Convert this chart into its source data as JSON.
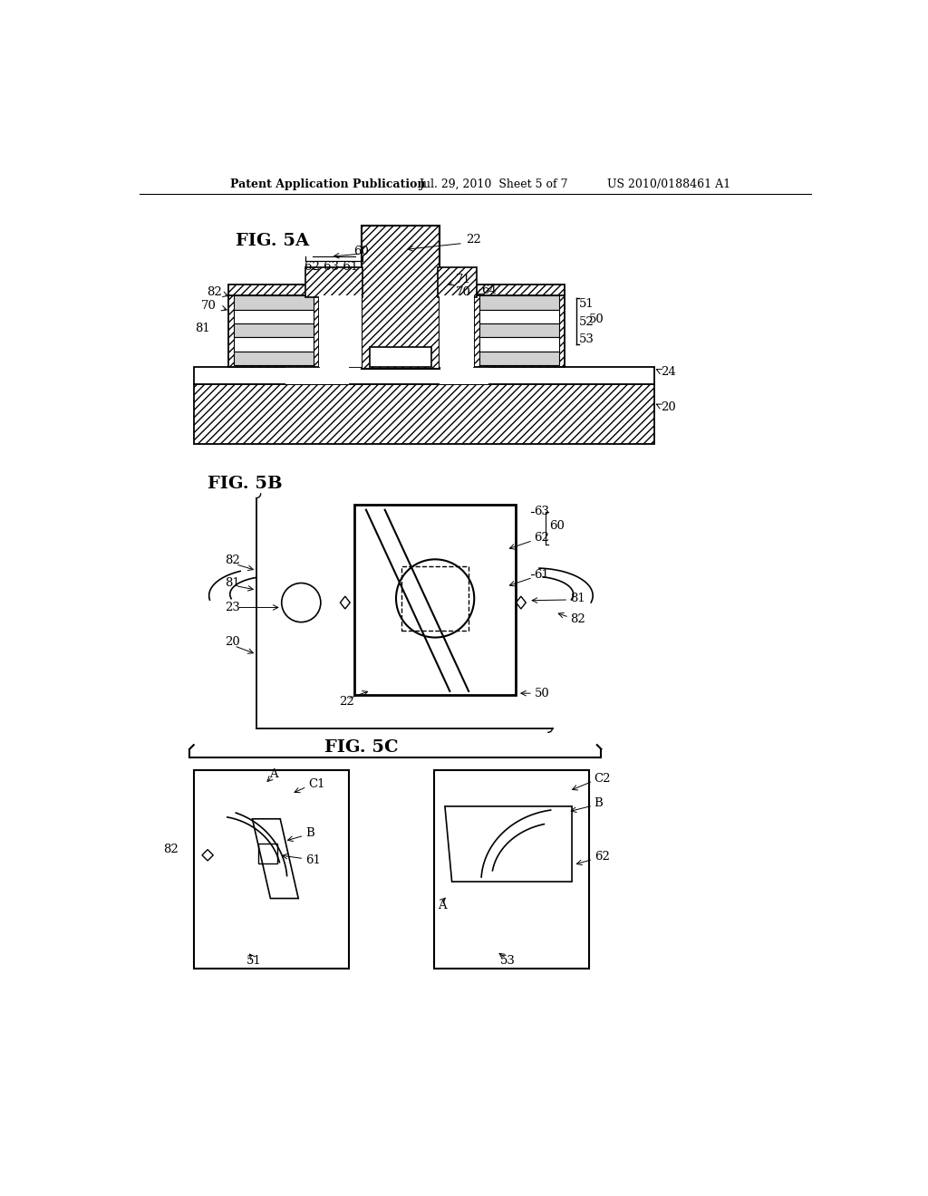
{
  "bg_color": "#ffffff",
  "line_color": "#000000",
  "header_text1": "Patent Application Publication",
  "header_text2": "Jul. 29, 2010  Sheet 5 of 7",
  "header_text3": "US 2010/0188461 A1",
  "fig5a_label": "FIG. 5A",
  "fig5b_label": "FIG. 5B",
  "fig5c_label": "FIG. 5C"
}
